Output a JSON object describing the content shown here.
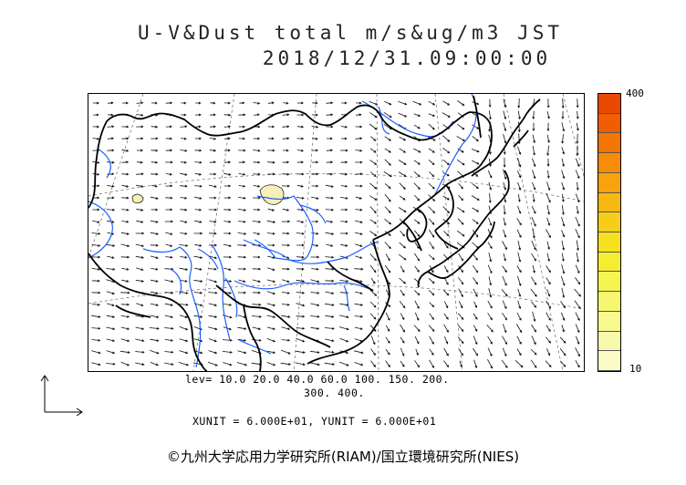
{
  "header": {
    "title_line1": "U-V&Dust total m/s&ug/m3 JST",
    "title_line2": "2018/12/31.09:00:00"
  },
  "colorbar": {
    "max_label": "400",
    "min_label": "10",
    "colors": [
      "#fbfbc8",
      "#f9f9ae",
      "#f9f990",
      "#f7f670",
      "#f5f450",
      "#f5ee30",
      "#f6e020",
      "#f7cd1a",
      "#f8b812",
      "#f8a20c",
      "#f78c08",
      "#f47504",
      "#f05e02",
      "#ea4a00"
    ]
  },
  "legend": {
    "levels_line1": "lev= 10.0 20.0 40.0 60.0 100. 150. 200.",
    "levels_line2": "300. 400.",
    "unit_line": "XUNIT = 6.000E+01, YUNIT = 6.000E+01"
  },
  "map": {
    "region": "East Asia",
    "wind_field": "northwesterly",
    "coast_color": "#000000",
    "river_color": "#1f5fff",
    "grid_color": "#555555",
    "dust_fill_color": "#f6f0b6"
  },
  "footer": {
    "copyright": "©九州大学応用力学研究所(RIAM)/国立環境研究所(NIES)"
  }
}
